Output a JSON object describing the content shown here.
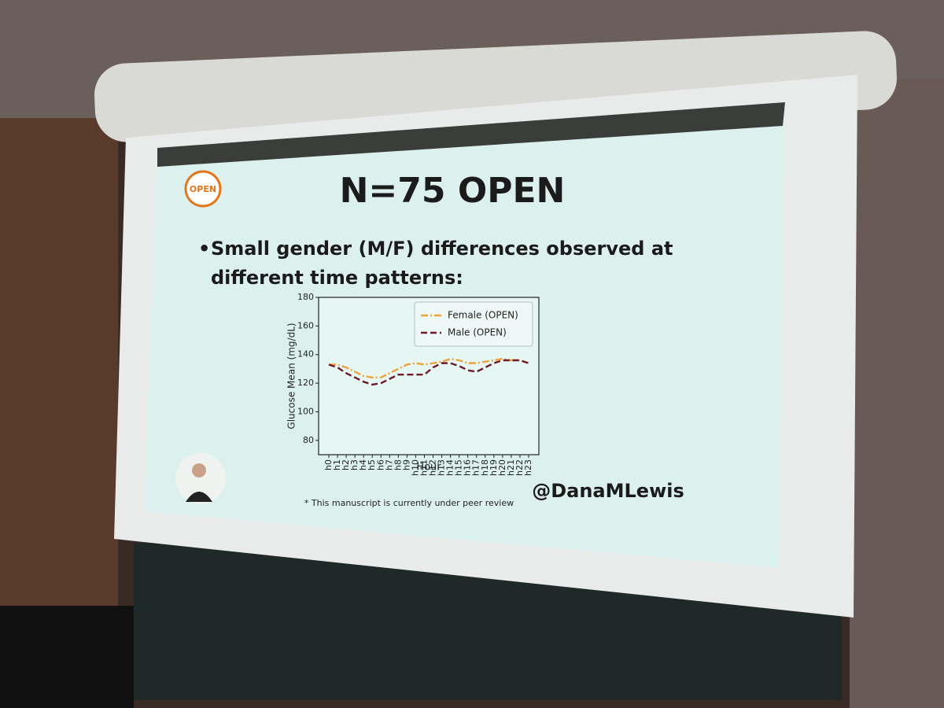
{
  "slide": {
    "logo": "OPEN",
    "title": "N=75 OPEN",
    "bullet": [
      "Small gender (M/F) differences observed at",
      "different time patterns:"
    ],
    "footnote": "* This manuscript is currently under peer review",
    "handle": "@DanaMLewis"
  },
  "chart_data": {
    "type": "line",
    "categories": [
      "h0",
      "h1",
      "h2",
      "h3",
      "h4",
      "h5",
      "h6",
      "h7",
      "h8",
      "h9",
      "h10",
      "h11",
      "h12",
      "h13",
      "h14",
      "h15",
      "h16",
      "h17",
      "h18",
      "h19",
      "h20",
      "h21",
      "h22",
      "h23"
    ],
    "series": [
      {
        "name": "Female (OPEN)",
        "color": "#eda23a",
        "dash": "dash-dot",
        "values": [
          133,
          133,
          131,
          128,
          125,
          124,
          124,
          127,
          130,
          133,
          134,
          133,
          134,
          135,
          137,
          136,
          134,
          134,
          135,
          136,
          137,
          136,
          136,
          134
        ]
      },
      {
        "name": "Male (OPEN)",
        "color": "#6e1a2a",
        "dash": "dashed",
        "values": [
          133,
          131,
          127,
          124,
          121,
          119,
          120,
          123,
          126,
          126,
          126,
          126,
          131,
          134,
          134,
          132,
          129,
          128,
          131,
          134,
          136,
          136,
          136,
          134
        ]
      }
    ],
    "xlabel": "Hour",
    "ylabel": "Glucose Mean (mg/dL)",
    "ylim": [
      70,
      180
    ],
    "yticks": [
      80,
      100,
      120,
      140,
      160,
      180
    ],
    "legend": "upper right",
    "grid": false
  }
}
